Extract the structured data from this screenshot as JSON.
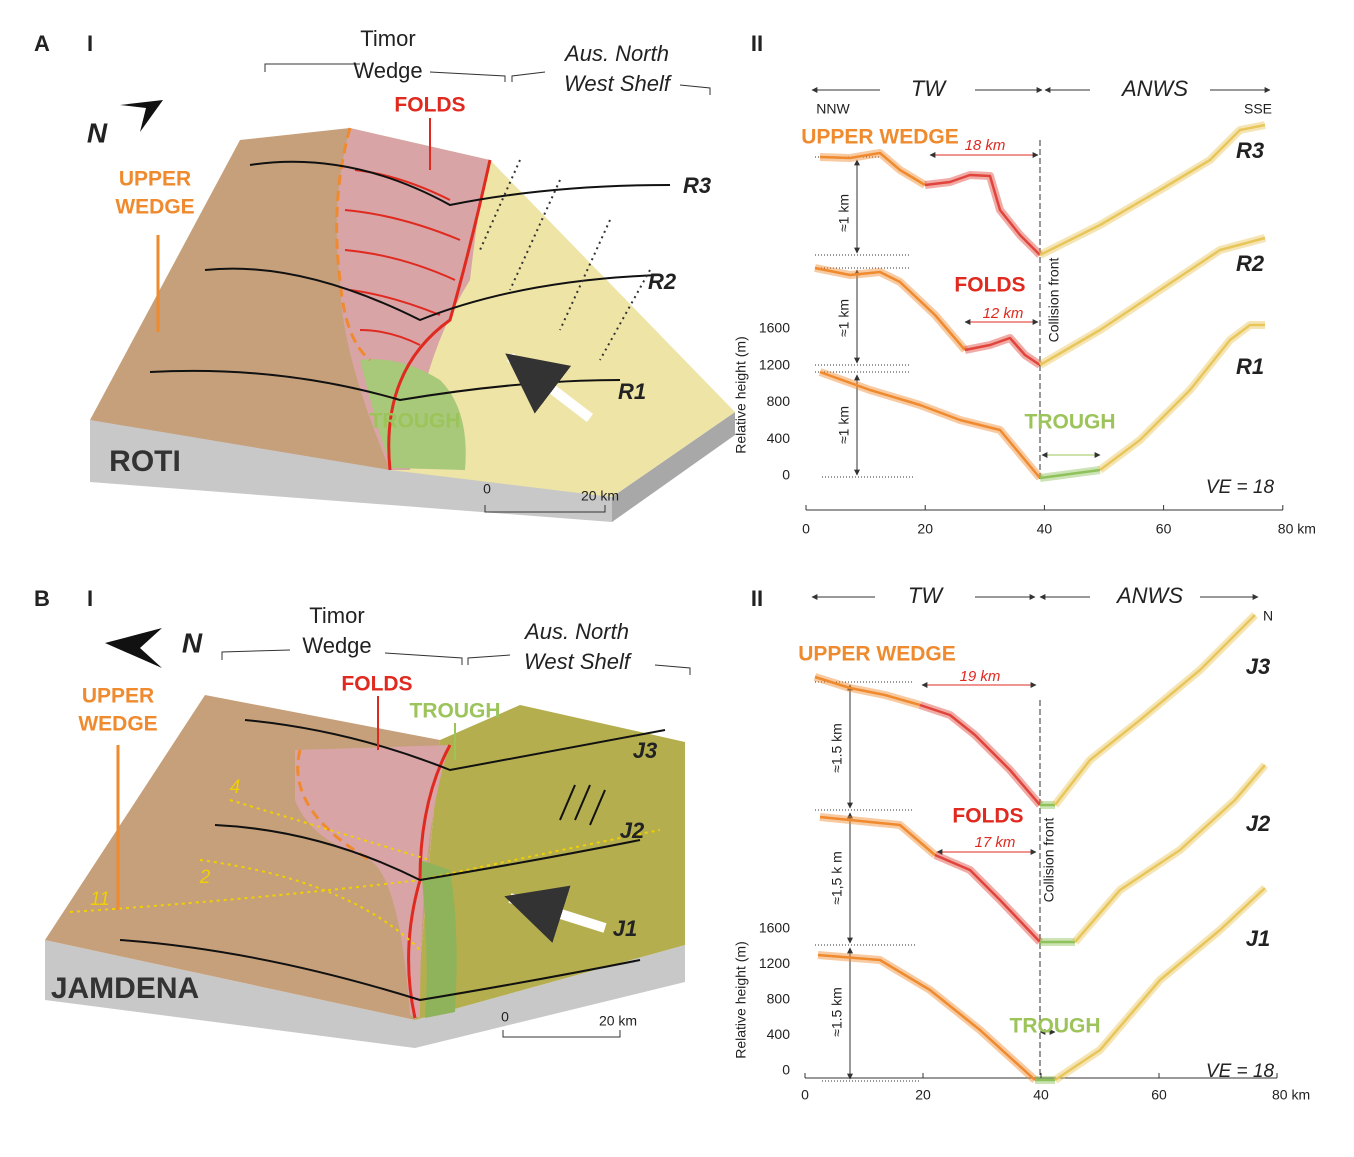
{
  "panel_a": {
    "letter": "A",
    "block": {
      "numeral": "I",
      "north": "N",
      "timor": [
        "Timor",
        "Wedge"
      ],
      "shelf": [
        "Aus. North",
        "West Shelf"
      ],
      "upper_wedge": [
        "UPPER",
        "WEDGE"
      ],
      "folds": "FOLDS",
      "trough": "TROUGH",
      "island": "ROTI",
      "profiles": [
        "R3",
        "R2",
        "R1"
      ],
      "scale": [
        "0",
        "20 km"
      ]
    },
    "profile": {
      "numeral": "II",
      "domains": [
        "TW",
        "ANWS"
      ],
      "directions": [
        "NNW",
        "SSE"
      ],
      "upper_wedge": "UPPER WEDGE",
      "folds": "FOLDS",
      "trough": "TROUGH",
      "fold_widths": [
        "18 km",
        "12 km"
      ],
      "relief": [
        "≈1 km",
        "≈1 km",
        "≈1 km"
      ],
      "collision": "Collision front",
      "y_label": "Relative height (m)",
      "yticks": [
        0,
        400,
        800,
        1200,
        1600
      ],
      "xticks": [
        "0",
        "20",
        "40",
        "60",
        "80 km"
      ],
      "profiles": [
        "R3",
        "R2",
        "R1"
      ],
      "ve": "VE = 18"
    }
  },
  "panel_b": {
    "letter": "B",
    "block": {
      "numeral": "I",
      "north": "N",
      "timor": [
        "Timor",
        "Wedge"
      ],
      "shelf": [
        "Aus. North",
        "West Shelf"
      ],
      "upper_wedge": [
        "UPPER",
        "WEDGE"
      ],
      "folds": "FOLDS",
      "trough": "TROUGH",
      "island": "JAMDENA",
      "profiles": [
        "J3",
        "J2",
        "J1"
      ],
      "scale": [
        "0",
        "20 km"
      ],
      "contours": [
        "4",
        "2",
        "11"
      ]
    },
    "profile": {
      "numeral": "II",
      "domains": [
        "TW",
        "ANWS"
      ],
      "directions": [
        "N"
      ],
      "upper_wedge": "UPPER WEDGE",
      "folds": "FOLDS",
      "trough": "TROUGH",
      "fold_widths": [
        "19 km",
        "17 km"
      ],
      "relief": [
        "≈1.5 km",
        "≈1,5 k m",
        "≈1.5 km"
      ],
      "collision": "Collision front",
      "y_label": "Relative height (m)",
      "yticks": [
        0,
        400,
        800,
        1200,
        1600
      ],
      "xticks": [
        "0",
        "20",
        "40",
        "60",
        "80 km"
      ],
      "profiles": [
        "J3",
        "J2",
        "J1"
      ],
      "ve": "VE = 18"
    }
  }
}
